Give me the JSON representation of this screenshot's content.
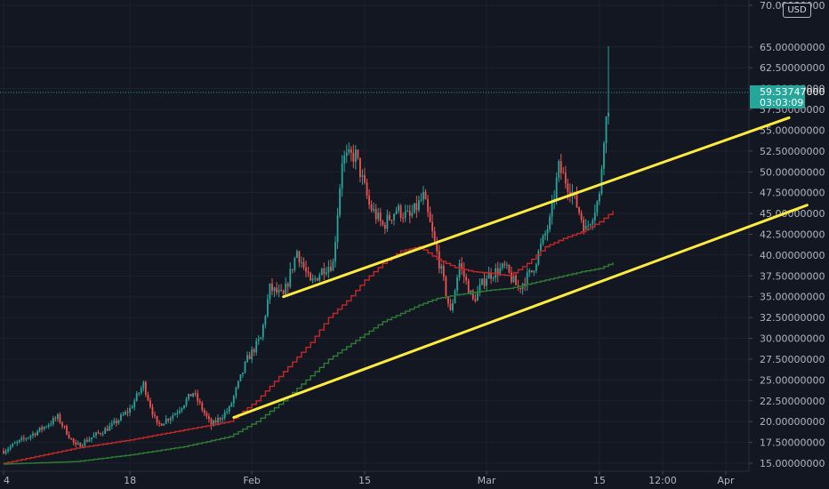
{
  "currency_button": "USD",
  "last_price": {
    "value": "59.53747000",
    "countdown": "03:03:09",
    "price": 59.53747,
    "color": "#26a69a"
  },
  "colors": {
    "background": "#131722",
    "grid": "#1e222d",
    "up": "#26a69a",
    "down": "#ef5350",
    "ma_fast": "#c62828",
    "ma_slow": "#2e7d32",
    "trendline": "#ffeb3b",
    "axis_text": "#b2b5be"
  },
  "chart_data": {
    "type": "candlestick",
    "y_axis": {
      "range": [
        14.5,
        70.5
      ],
      "tick_labels": [
        "15.00000000",
        "17.50000000",
        "20.00000000",
        "22.50000000",
        "25.00000000",
        "27.50000000",
        "30.00000000",
        "32.50000000",
        "35.00000000",
        "37.50000000",
        "40.00000000",
        "42.50000000",
        "45.00000000",
        "47.50000000",
        "50.00000000",
        "52.50000000",
        "55.00000000",
        "57.50000000",
        "60.00000000",
        "62.50000000",
        "65.00000000",
        "70.00000000"
      ],
      "tick_values": [
        15,
        17.5,
        20,
        22.5,
        25,
        27.5,
        30,
        32.5,
        35,
        37.5,
        40,
        42.5,
        45,
        47.5,
        50,
        52.5,
        55,
        57.5,
        60,
        62.5,
        65,
        70
      ]
    },
    "x_axis": {
      "range_days": [
        0,
        58
      ],
      "tick_labels": [
        "4",
        "18",
        "Feb",
        "15",
        "Mar",
        "15",
        "12:00",
        "Apr"
      ],
      "tick_days": [
        0,
        14,
        27.5,
        40,
        53.5,
        66,
        73,
        80
      ]
    },
    "key_points": [
      {
        "day": 0,
        "price": 16.5
      },
      {
        "day": 4,
        "price": 19.0
      },
      {
        "day": 6,
        "price": 20.5
      },
      {
        "day": 8,
        "price": 17.0
      },
      {
        "day": 12,
        "price": 19.5
      },
      {
        "day": 14,
        "price": 21.5
      },
      {
        "day": 15.5,
        "price": 24.5
      },
      {
        "day": 17,
        "price": 19.5
      },
      {
        "day": 19,
        "price": 21.0
      },
      {
        "day": 21,
        "price": 23.5
      },
      {
        "day": 23,
        "price": 19.5
      },
      {
        "day": 25,
        "price": 21.5
      },
      {
        "day": 27,
        "price": 27.5
      },
      {
        "day": 28.5,
        "price": 30.0
      },
      {
        "day": 29.5,
        "price": 36.0
      },
      {
        "day": 31,
        "price": 35.0
      },
      {
        "day": 32.5,
        "price": 40.5
      },
      {
        "day": 34,
        "price": 36.5
      },
      {
        "day": 35.5,
        "price": 38.5
      },
      {
        "day": 36.5,
        "price": 39.0
      },
      {
        "day": 37.5,
        "price": 51.5
      },
      {
        "day": 39,
        "price": 52.0
      },
      {
        "day": 40.5,
        "price": 46.0
      },
      {
        "day": 42,
        "price": 43.5
      },
      {
        "day": 43.5,
        "price": 45.5
      },
      {
        "day": 45,
        "price": 44.5
      },
      {
        "day": 46.5,
        "price": 47.0
      },
      {
        "day": 48.5,
        "price": 38.0
      },
      {
        "day": 49.5,
        "price": 33.0
      },
      {
        "day": 50.5,
        "price": 39.0
      },
      {
        "day": 52,
        "price": 34.5
      },
      {
        "day": 53.5,
        "price": 37.5
      },
      {
        "day": 55.5,
        "price": 38.5
      },
      {
        "day": 57,
        "price": 36.0
      },
      {
        "day": 58.5,
        "price": 38.0
      },
      {
        "day": 60.5,
        "price": 44.0
      },
      {
        "day": 61.5,
        "price": 50.5
      },
      {
        "day": 63,
        "price": 47.5
      },
      {
        "day": 64.5,
        "price": 43.0
      },
      {
        "day": 66,
        "price": 47.0
      },
      {
        "day": 66.5,
        "price": 54.5
      },
      {
        "day": 67.2,
        "price": 59.5
      }
    ],
    "moving_averages": [
      {
        "points": [
          [
            0,
            15.0
          ],
          [
            8,
            16.8
          ],
          [
            14,
            17.8
          ],
          [
            20,
            19.0
          ],
          [
            25,
            20.0
          ],
          [
            28,
            22.5
          ],
          [
            31,
            26.0
          ],
          [
            34,
            29.5
          ],
          [
            36,
            32.5
          ],
          [
            38,
            34.5
          ],
          [
            40,
            37.0
          ],
          [
            42,
            39.0
          ],
          [
            44,
            40.5
          ],
          [
            46,
            41.0
          ],
          [
            48,
            39.5
          ],
          [
            50,
            38.5
          ],
          [
            52,
            38.0
          ],
          [
            54,
            37.8
          ],
          [
            56,
            37.5
          ],
          [
            58,
            39.0
          ],
          [
            60,
            41.0
          ],
          [
            62,
            42.0
          ],
          [
            64,
            42.8
          ],
          [
            66,
            44.0
          ],
          [
            67.5,
            45.3
          ]
        ]
      },
      {
        "points": [
          [
            0,
            14.9
          ],
          [
            8,
            15.2
          ],
          [
            14,
            16.0
          ],
          [
            20,
            17.0
          ],
          [
            25,
            18.2
          ],
          [
            28,
            20.0
          ],
          [
            31,
            22.5
          ],
          [
            34,
            25.5
          ],
          [
            36,
            27.5
          ],
          [
            38,
            29.0
          ],
          [
            40,
            30.5
          ],
          [
            42,
            32.0
          ],
          [
            44,
            33.0
          ],
          [
            46,
            34.0
          ],
          [
            48,
            34.8
          ],
          [
            50,
            35.2
          ],
          [
            52,
            35.5
          ],
          [
            54,
            35.8
          ],
          [
            56,
            36.0
          ],
          [
            58,
            36.5
          ],
          [
            60,
            37.0
          ],
          [
            62,
            37.5
          ],
          [
            64,
            38.0
          ],
          [
            66,
            38.4
          ],
          [
            67.5,
            39.1
          ]
        ]
      }
    ],
    "trendlines": [
      {
        "start": [
          31.0,
          35.0
        ],
        "end": [
          87.0,
          56.5
        ]
      },
      {
        "start": [
          25.5,
          20.5
        ],
        "end": [
          89.0,
          46.0
        ]
      }
    ]
  }
}
